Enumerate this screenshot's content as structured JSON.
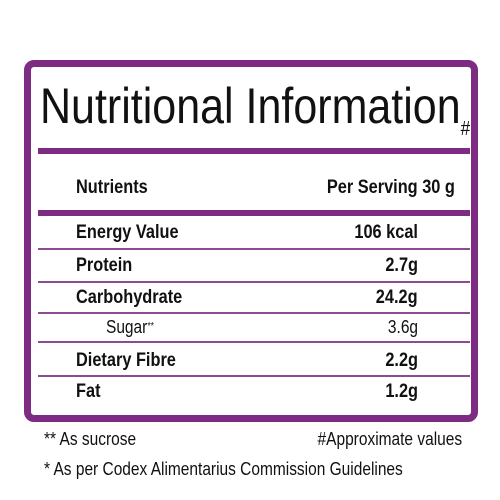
{
  "title": "Nutritional Information",
  "title_mark": "#",
  "header": {
    "nutrient": "Nutrients",
    "serving": "Per Serving 30 g"
  },
  "rows": [
    {
      "name": "Energy Value",
      "value": "106 kcal"
    },
    {
      "name": "Protein",
      "value": "2.7g"
    },
    {
      "name": "Carbohydrate",
      "value": "24.2g"
    },
    {
      "name": "Sugar",
      "mark": "**",
      "value": "3.6g"
    },
    {
      "name": "Dietary Fibre",
      "value": "2.2g"
    },
    {
      "name": "Fat",
      "value": "1.2g"
    }
  ],
  "footnotes": {
    "sucrose": "** As sucrose",
    "approx": "#Approximate values",
    "codex": "* As per Codex Alimentarius Commission Guidelines"
  }
}
